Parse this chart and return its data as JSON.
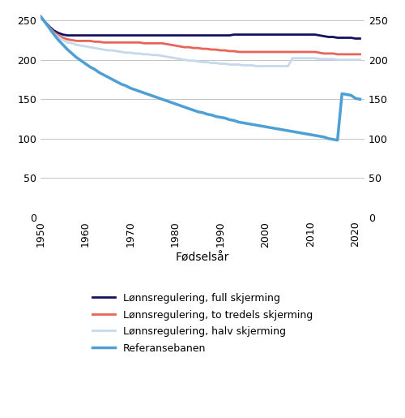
{
  "xlabel": "Fødselsår",
  "xlim": [
    1950,
    2022
  ],
  "ylim": [
    0,
    260
  ],
  "yticks": [
    0,
    50,
    100,
    150,
    200,
    250
  ],
  "xticks": [
    1950,
    1960,
    1970,
    1980,
    1990,
    2000,
    2010,
    2020
  ],
  "series": {
    "full_skjerming": {
      "label": "Lønnsregulering, full skjerming",
      "color": "#12125e",
      "linewidth": 2.0,
      "x": [
        1950,
        1951,
        1952,
        1953,
        1954,
        1955,
        1956,
        1957,
        1958,
        1959,
        1960,
        1961,
        1962,
        1963,
        1964,
        1965,
        1966,
        1967,
        1968,
        1969,
        1970,
        1971,
        1972,
        1973,
        1974,
        1975,
        1976,
        1977,
        1978,
        1979,
        1980,
        1981,
        1982,
        1983,
        1984,
        1985,
        1986,
        1987,
        1988,
        1989,
        1990,
        1991,
        1992,
        1993,
        1994,
        1995,
        1996,
        1997,
        1998,
        1999,
        2000,
        2001,
        2002,
        2003,
        2004,
        2005,
        2006,
        2007,
        2008,
        2009,
        2010,
        2011,
        2012,
        2013,
        2014,
        2015,
        2016,
        2017,
        2018,
        2019,
        2020,
        2021
      ],
      "y": [
        255,
        248,
        242,
        237,
        234,
        232,
        231,
        231,
        231,
        231,
        231,
        231,
        231,
        231,
        231,
        231,
        231,
        231,
        231,
        231,
        231,
        231,
        231,
        231,
        231,
        231,
        231,
        231,
        231,
        231,
        231,
        231,
        231,
        231,
        231,
        231,
        231,
        231,
        231,
        231,
        231,
        231,
        231,
        232,
        232,
        232,
        232,
        232,
        232,
        232,
        232,
        232,
        232,
        232,
        232,
        232,
        232,
        232,
        232,
        232,
        232,
        232,
        231,
        230,
        229,
        229,
        228,
        228,
        228,
        228,
        227,
        227
      ]
    },
    "to_tredels_skjerming": {
      "label": "Lønnsregulering, to tredels skjerming",
      "color": "#e8645a",
      "linewidth": 2.0,
      "x": [
        1950,
        1951,
        1952,
        1953,
        1954,
        1955,
        1956,
        1957,
        1958,
        1959,
        1960,
        1961,
        1962,
        1963,
        1964,
        1965,
        1966,
        1967,
        1968,
        1969,
        1970,
        1971,
        1972,
        1973,
        1974,
        1975,
        1976,
        1977,
        1978,
        1979,
        1980,
        1981,
        1982,
        1983,
        1984,
        1985,
        1986,
        1987,
        1988,
        1989,
        1990,
        1991,
        1992,
        1993,
        1994,
        1995,
        1996,
        1997,
        1998,
        1999,
        2000,
        2001,
        2002,
        2003,
        2004,
        2005,
        2006,
        2007,
        2008,
        2009,
        2010,
        2011,
        2012,
        2013,
        2014,
        2015,
        2016,
        2017,
        2018,
        2019,
        2020,
        2021
      ],
      "y": [
        255,
        247,
        241,
        235,
        231,
        228,
        226,
        225,
        224,
        224,
        224,
        224,
        223,
        223,
        222,
        222,
        222,
        222,
        222,
        222,
        222,
        222,
        222,
        221,
        221,
        221,
        221,
        221,
        220,
        219,
        218,
        217,
        216,
        216,
        215,
        215,
        214,
        214,
        213,
        213,
        212,
        212,
        211,
        211,
        210,
        210,
        210,
        210,
        210,
        210,
        210,
        210,
        210,
        210,
        210,
        210,
        210,
        210,
        210,
        210,
        210,
        210,
        209,
        208,
        208,
        208,
        207,
        207,
        207,
        207,
        207,
        207
      ]
    },
    "halv_skjerming": {
      "label": "Lønnsregulering, halv skjerming",
      "color": "#c5d8ec",
      "linewidth": 2.0,
      "x": [
        1950,
        1951,
        1952,
        1953,
        1954,
        1955,
        1956,
        1957,
        1958,
        1959,
        1960,
        1961,
        1962,
        1963,
        1964,
        1965,
        1966,
        1967,
        1968,
        1969,
        1970,
        1971,
        1972,
        1973,
        1974,
        1975,
        1976,
        1977,
        1978,
        1979,
        1980,
        1981,
        1982,
        1983,
        1984,
        1985,
        1986,
        1987,
        1988,
        1989,
        1990,
        1991,
        1992,
        1993,
        1994,
        1995,
        1996,
        1997,
        1998,
        1999,
        2000,
        2001,
        2002,
        2003,
        2004,
        2005,
        2006,
        2007,
        2008,
        2009,
        2010,
        2011,
        2012,
        2013,
        2014,
        2015,
        2016,
        2017,
        2018,
        2019,
        2020,
        2021
      ],
      "y": [
        255,
        247,
        240,
        233,
        229,
        225,
        222,
        221,
        219,
        218,
        217,
        216,
        215,
        214,
        213,
        212,
        212,
        211,
        210,
        209,
        209,
        208,
        208,
        207,
        207,
        206,
        206,
        205,
        204,
        203,
        202,
        201,
        200,
        199,
        199,
        198,
        197,
        197,
        196,
        196,
        195,
        195,
        194,
        194,
        194,
        193,
        193,
        193,
        192,
        192,
        192,
        192,
        192,
        192,
        192,
        192,
        202,
        202,
        202,
        202,
        202,
        202,
        201,
        201,
        201,
        201,
        200,
        200,
        200,
        200,
        200,
        200
      ]
    },
    "referansebanen": {
      "label": "Referansebanen",
      "color": "#4d9fd6",
      "linewidth": 2.5,
      "x": [
        1950,
        1951,
        1952,
        1953,
        1954,
        1955,
        1956,
        1957,
        1958,
        1959,
        1960,
        1961,
        1962,
        1963,
        1964,
        1965,
        1966,
        1967,
        1968,
        1969,
        1970,
        1971,
        1972,
        1973,
        1974,
        1975,
        1976,
        1977,
        1978,
        1979,
        1980,
        1981,
        1982,
        1983,
        1984,
        1985,
        1986,
        1987,
        1988,
        1989,
        1990,
        1991,
        1992,
        1993,
        1994,
        1995,
        1996,
        1997,
        1998,
        1999,
        2000,
        2001,
        2002,
        2003,
        2004,
        2005,
        2006,
        2007,
        2008,
        2009,
        2010,
        2011,
        2012,
        2013,
        2014,
        2015,
        2016,
        2017,
        2018,
        2019,
        2020,
        2021
      ],
      "y": [
        255,
        248,
        240,
        232,
        225,
        219,
        213,
        208,
        203,
        199,
        195,
        191,
        188,
        184,
        181,
        178,
        175,
        172,
        169,
        167,
        164,
        162,
        160,
        158,
        156,
        154,
        152,
        150,
        148,
        146,
        144,
        142,
        140,
        138,
        136,
        134,
        133,
        131,
        130,
        128,
        127,
        126,
        124,
        123,
        121,
        120,
        119,
        118,
        117,
        116,
        115,
        114,
        113,
        112,
        111,
        110,
        109,
        108,
        107,
        106,
        105,
        104,
        103,
        102,
        100,
        99,
        98,
        157,
        156,
        155,
        151,
        150
      ]
    }
  },
  "legend_order": [
    "full_skjerming",
    "to_tredels_skjerming",
    "halv_skjerming",
    "referansebanen"
  ],
  "background_color": "#ffffff",
  "grid_color": "#bbbbbb",
  "grid_linewidth": 0.6
}
